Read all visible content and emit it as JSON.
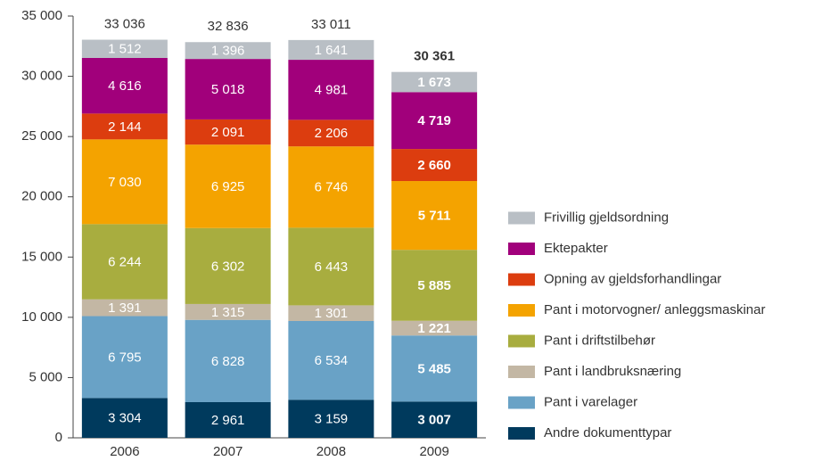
{
  "chart_data": {
    "type": "stacked_bar",
    "categories": [
      "2006",
      "2007",
      "2008",
      "2009"
    ],
    "series": [
      {
        "name": "Andre dokumenttypar",
        "color": "#003a5d",
        "values": [
          3304,
          2961,
          3159,
          3007
        ],
        "value_labels": [
          "3 304",
          "2 961",
          "3 159",
          "3 007"
        ]
      },
      {
        "name": "Pant i varelager",
        "color": "#69a2c6",
        "values": [
          6795,
          6828,
          6534,
          5485
        ],
        "value_labels": [
          "6 795",
          "6 828",
          "6 534",
          "5 485"
        ]
      },
      {
        "name": "Pant i landbruksnæring",
        "color": "#c3b7a4",
        "values": [
          1391,
          1315,
          1301,
          1221
        ],
        "value_labels": [
          "1 391",
          "1 315",
          "1 301",
          "1 221"
        ]
      },
      {
        "name": "Pant i driftstilbehør",
        "color": "#a8ad3f",
        "values": [
          6244,
          6302,
          6443,
          5885
        ],
        "value_labels": [
          "6 244",
          "6 302",
          "6 443",
          "5 885"
        ]
      },
      {
        "name": "Pant i motorvogner/ anleggsmaskinar",
        "color": "#f4a300",
        "values": [
          7030,
          6925,
          6746,
          5711
        ],
        "value_labels": [
          "7 030",
          "6 925",
          "6 746",
          "5 711"
        ]
      },
      {
        "name": "Opning av gjeldsforhandlingar",
        "color": "#dc3d0f",
        "values": [
          2144,
          2091,
          2206,
          2660
        ],
        "value_labels": [
          "2 144",
          "2 091",
          "2 206",
          "2 660"
        ]
      },
      {
        "name": "Ektepakter",
        "color": "#a1007b",
        "values": [
          4616,
          5018,
          4981,
          4719
        ],
        "value_labels": [
          "4 616",
          "5 018",
          "4 981",
          "4 719"
        ]
      },
      {
        "name": "Frivillig gjeldsordning",
        "color": "#b9bfc5",
        "values": [
          1512,
          1396,
          1641,
          1673
        ],
        "value_labels": [
          "1 512",
          "1 396",
          "1 641",
          "1 673"
        ]
      }
    ],
    "totals": [
      33036,
      32836,
      33011,
      30361
    ],
    "total_labels": [
      "33 036",
      "32 836",
      "33 011",
      "30 361"
    ],
    "ylim": [
      0,
      35000
    ],
    "yticks": [
      0,
      {
        "value": 5000,
        "label": "5 000"
      },
      {
        "value": 10000,
        "label": "10 000"
      },
      {
        "value": 15000,
        "label": "15 000"
      },
      {
        "value": 20000,
        "label": "20 000"
      },
      {
        "value": 25000,
        "label": "25 000"
      },
      {
        "value": 30000,
        "label": "30 000"
      },
      {
        "value": 35000,
        "label": "35 000"
      }
    ],
    "legend": "right"
  }
}
